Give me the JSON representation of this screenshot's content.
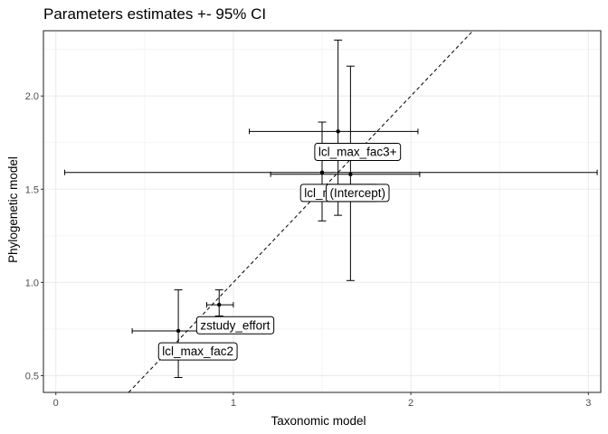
{
  "chart_data": {
    "type": "scatter",
    "title": "Parameters estimates +- 95% CI",
    "xlabel": "Taxonomic model",
    "ylabel": "Phylogenetic model",
    "xlim": [
      -0.07,
      3.07
    ],
    "ylim": [
      0.41,
      2.35
    ],
    "x_ticks": [
      0,
      1,
      2,
      3
    ],
    "y_ticks": [
      0.5,
      1.0,
      1.5,
      2.0
    ],
    "x_tick_labels": [
      "0",
      "1",
      "2",
      "3"
    ],
    "y_tick_labels": [
      "0.5",
      "1.0",
      "1.5",
      "2.0"
    ],
    "grid": true,
    "reference_line": {
      "style": "dashed",
      "slope": 1,
      "intercept": 0
    },
    "points": [
      {
        "label": "lcl_max_fac3+",
        "x": 1.59,
        "y": 1.81,
        "xerr": [
          1.09,
          2.04
        ],
        "yerr": [
          1.36,
          2.3
        ],
        "label_x": 1.7,
        "label_y": 1.7
      },
      {
        "label": "lcl_max_fac3",
        "x": 1.5,
        "y": 1.59,
        "xerr": [
          0.05,
          3.05
        ],
        "yerr": [
          1.33,
          1.86
        ],
        "label_x": 1.6,
        "label_y": 1.48
      },
      {
        "label": "(Intercept)",
        "x": 1.66,
        "y": 1.58,
        "xerr": [
          1.21,
          2.05
        ],
        "yerr": [
          1.01,
          2.16
        ],
        "label_x": 1.7,
        "label_y": 1.48
      },
      {
        "label": "zstudy_effort",
        "x": 0.92,
        "y": 0.88,
        "xerr": [
          0.85,
          1.0
        ],
        "yerr": [
          0.82,
          0.96
        ],
        "label_x": 1.01,
        "label_y": 0.77
      },
      {
        "label": "lcl_max_fac2",
        "x": 0.69,
        "y": 0.74,
        "xerr": [
          0.43,
          0.92
        ],
        "yerr": [
          0.49,
          0.96
        ],
        "label_x": 0.8,
        "label_y": 0.63
      }
    ]
  }
}
